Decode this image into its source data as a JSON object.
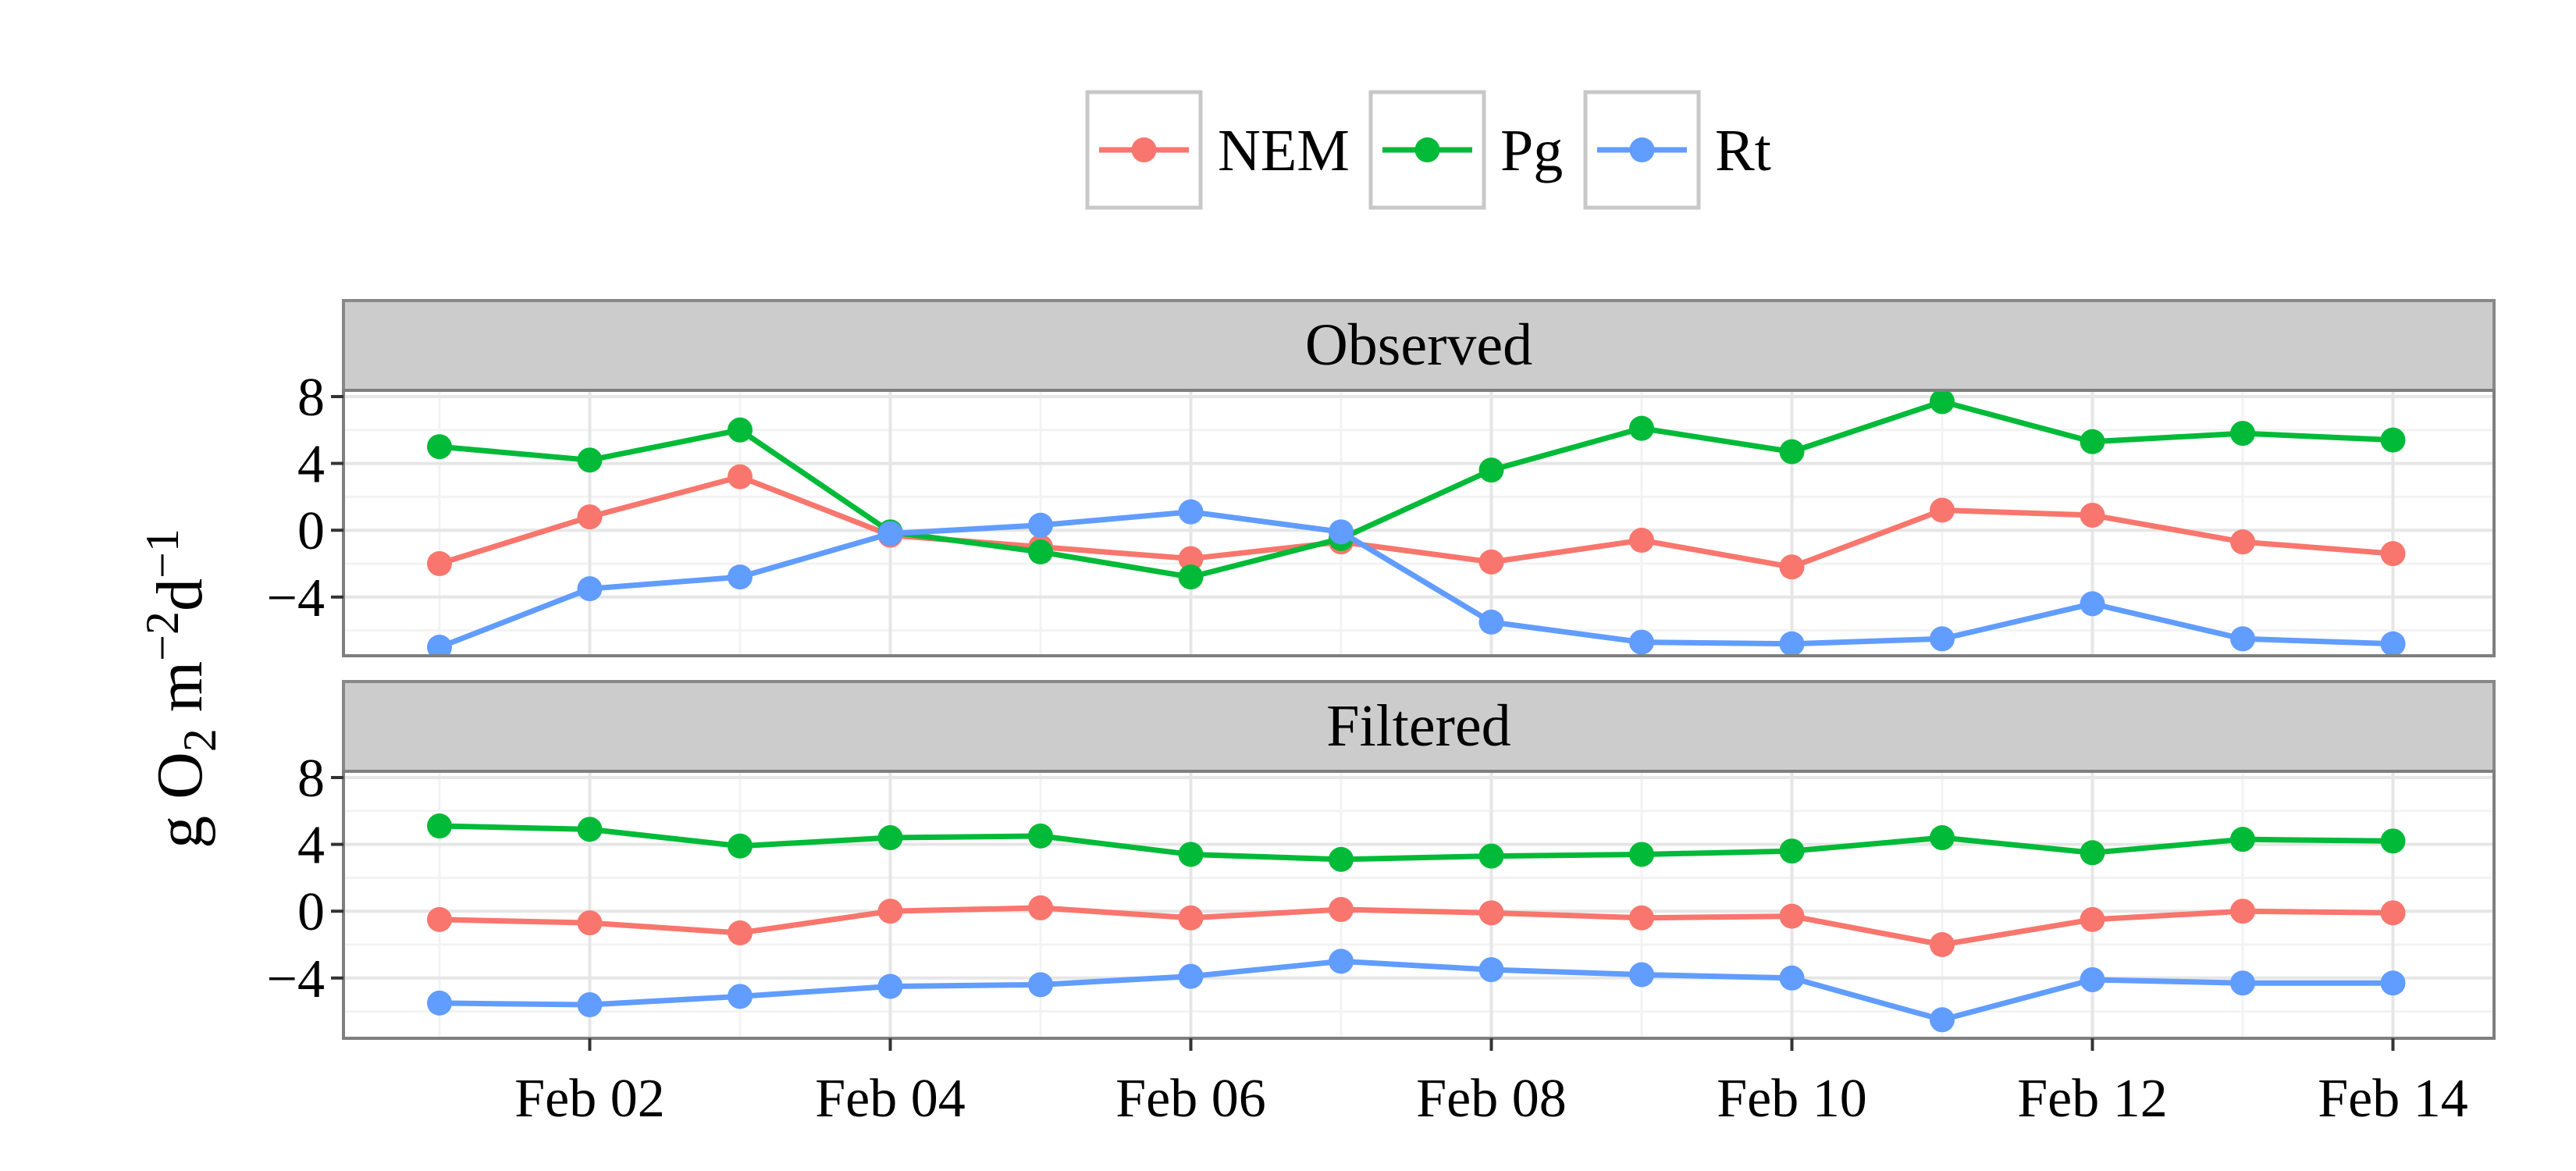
{
  "chart_data": {
    "type": "line",
    "x": [
      "Feb 01",
      "Feb 02",
      "Feb 03",
      "Feb 04",
      "Feb 05",
      "Feb 06",
      "Feb 07",
      "Feb 08",
      "Feb 09",
      "Feb 10",
      "Feb 11",
      "Feb 12",
      "Feb 13",
      "Feb 14"
    ],
    "x_ticks": [
      "Feb 02",
      "Feb 04",
      "Feb 06",
      "Feb 08",
      "Feb 10",
      "Feb 12",
      "Feb 14"
    ],
    "ylabel": {
      "base": "g O",
      "sub": "2",
      "unit1": " m",
      "sup1": "−2",
      "unit2": "d",
      "sup2": "−1"
    },
    "y_ticks": [
      "8",
      "4",
      "0",
      "−4"
    ],
    "ylim": [
      -7.5,
      8
    ],
    "grid": true,
    "legend": {
      "placement": "top",
      "entries": [
        "NEM",
        "Pg",
        "Rt"
      ]
    },
    "colors": {
      "NEM": "#F8766D",
      "Pg": "#00BA38",
      "Rt": "#619CFF"
    },
    "panels": [
      {
        "title": "Observed",
        "series": [
          {
            "name": "NEM",
            "values": [
              -2.0,
              0.8,
              3.2,
              -0.3,
              -1.0,
              -1.7,
              -0.7,
              -1.9,
              -0.6,
              -2.2,
              1.2,
              0.9,
              -0.7,
              -1.4
            ]
          },
          {
            "name": "Pg",
            "values": [
              5.0,
              4.2,
              6.0,
              -0.1,
              -1.3,
              -2.8,
              -0.5,
              3.6,
              6.1,
              4.7,
              7.7,
              5.3,
              5.8,
              5.4
            ]
          },
          {
            "name": "Rt",
            "values": [
              -7.0,
              -3.5,
              -2.8,
              -0.2,
              0.3,
              1.1,
              -0.1,
              -5.5,
              -6.7,
              -6.8,
              -6.5,
              -4.4,
              -6.5,
              -6.8
            ]
          }
        ]
      },
      {
        "title": "Filtered",
        "series": [
          {
            "name": "NEM",
            "values": [
              -0.5,
              -0.7,
              -1.3,
              0.0,
              0.2,
              -0.4,
              0.1,
              -0.1,
              -0.4,
              -0.3,
              -2.0,
              -0.5,
              0.0,
              -0.1
            ]
          },
          {
            "name": "Pg",
            "values": [
              5.1,
              4.9,
              3.9,
              4.4,
              4.5,
              3.4,
              3.1,
              3.3,
              3.4,
              3.6,
              4.4,
              3.5,
              4.3,
              4.2
            ]
          },
          {
            "name": "Rt",
            "values": [
              -5.5,
              -5.6,
              -5.1,
              -4.5,
              -4.4,
              -3.9,
              -3.0,
              -3.5,
              -3.8,
              -4.0,
              -6.5,
              -4.1,
              -4.3,
              -4.3
            ]
          }
        ]
      }
    ]
  }
}
